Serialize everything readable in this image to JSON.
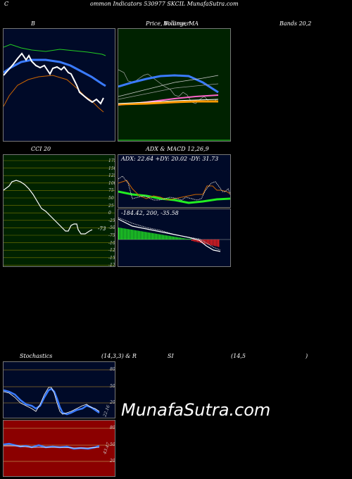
{
  "header": {
    "c": "C",
    "title": "ommon  Indicators 530977 SKCIL  MunafaSutra.com"
  },
  "bollinger": {
    "title_b": "B",
    "title_price": "Price,  Volume,  MA",
    "title_price_overlap": "Bollinger",
    "title_bands": "Bands 20,2"
  },
  "cci": {
    "title": "CCI 20",
    "value": "-73",
    "levels": [
      "175",
      "150",
      "125",
      "100",
      "75",
      "50",
      "25",
      "0",
      "-25",
      "-50",
      "-75",
      "-100",
      "-125",
      "-150",
      "-175"
    ]
  },
  "adx": {
    "title": "ADX  & MACD 12,26,9",
    "readout": "ADX: 22.64  +DY: 20.02  -DY: 31.73"
  },
  "macd": {
    "readout": "-184.42,  200,  -35.58"
  },
  "stoch": {
    "title_left": "Stochastics",
    "title_mid": "(14,3,3) & R",
    "title_si": "SI",
    "title_right": "(14,5",
    "title_paren": ")",
    "stoch_levels": [
      "80",
      "50",
      "20"
    ],
    "stoch_value": "22.16",
    "rsi_levels": [
      "80",
      "50",
      "20"
    ],
    "rsi_value": "43.47"
  },
  "watermark": "MunafaSutra.com",
  "colors": {
    "navy": "#000a28",
    "green_panel": "#002200",
    "red_panel": "#8b0000",
    "blue_line": "#3a7bff"
  }
}
